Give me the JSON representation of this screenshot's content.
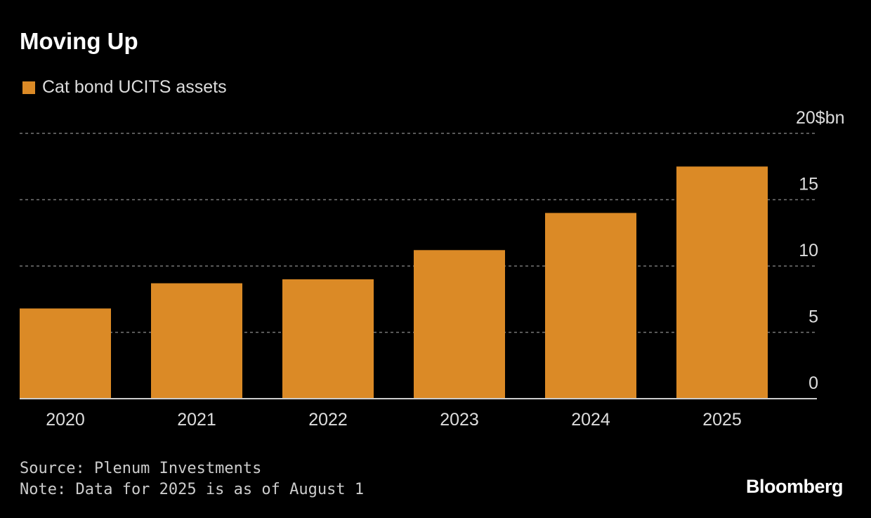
{
  "title": "Moving Up",
  "footer": {
    "source": "Source: Plenum Investments",
    "note": "Note: Data for 2025 is as of August 1",
    "logo": "Bloomberg"
  },
  "chart_data": {
    "type": "bar",
    "title": "Moving Up",
    "categories": [
      "2020",
      "2021",
      "2022",
      "2023",
      "2024",
      "2025"
    ],
    "series": [
      {
        "name": "Cat bond UCITS assets",
        "color": "#DB8A26",
        "values": [
          6.8,
          8.7,
          9.0,
          11.2,
          14.0,
          17.5
        ]
      }
    ],
    "ylim": [
      0,
      20
    ],
    "yticks": [
      0,
      5,
      10,
      15,
      20
    ],
    "yunit": "$bn",
    "xlabel": "",
    "ylabel": "",
    "grid": true,
    "legend": "top-left"
  }
}
